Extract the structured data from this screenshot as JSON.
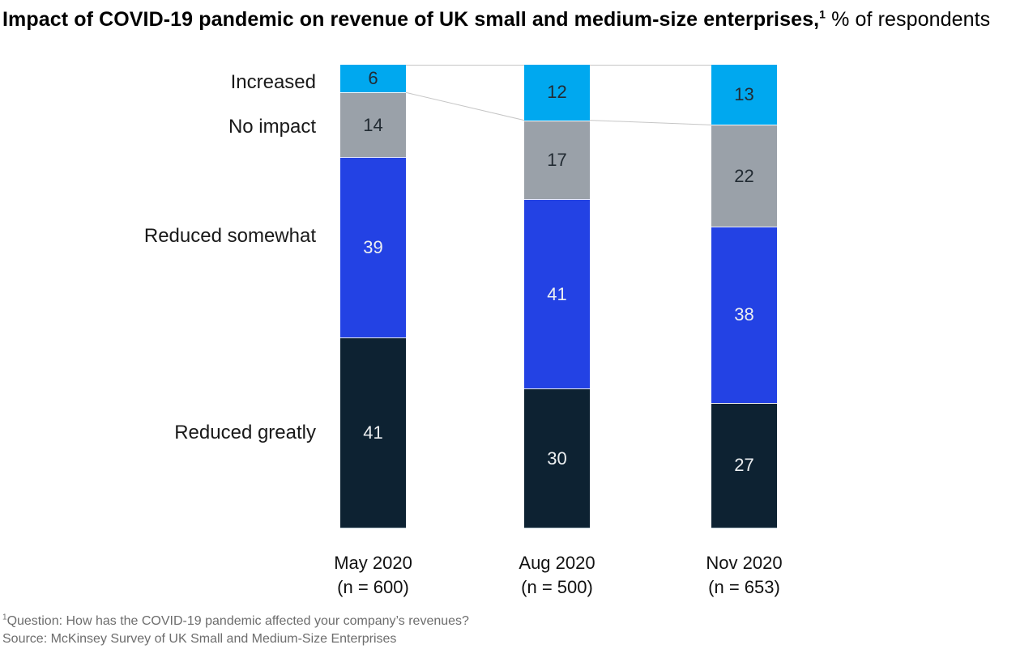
{
  "title": {
    "main": "Impact of COVID-19 pandemic on revenue of UK small and medium-size enterprises,",
    "footnote_marker": "1",
    "suffix": " % of respondents"
  },
  "chart_data": {
    "type": "bar",
    "stacked": true,
    "orientation": "vertical",
    "value_unit": "% of respondents",
    "total_per_bar": 100,
    "grid": false,
    "legend_position": "left-row-labels",
    "categories": [
      {
        "label": "May 2020",
        "n_label": "(n = 600)"
      },
      {
        "label": "Aug 2020",
        "n_label": "(n = 500)"
      },
      {
        "label": "Nov 2020",
        "n_label": "(n = 653)"
      }
    ],
    "series": [
      {
        "name": "Increased",
        "color": "#00a8ef",
        "text_color": "#222b33",
        "values": [
          6,
          12,
          13
        ]
      },
      {
        "name": "No impact",
        "color": "#9aa1a9",
        "text_color": "#222b33",
        "values": [
          14,
          17,
          22
        ]
      },
      {
        "name": "Reduced somewhat",
        "color": "#2342e4",
        "text_color": "#eceff1",
        "values": [
          39,
          41,
          38
        ]
      },
      {
        "name": "Reduced greatly",
        "color": "#0d2232",
        "text_color": "#eceff1",
        "values": [
          41,
          30,
          27
        ]
      }
    ],
    "connector_line_color": "#c6c6c6"
  },
  "footnotes": {
    "question": {
      "marker": "1",
      "text": "Question: How has the COVID-19 pandemic affected your company’s revenues?"
    },
    "source": "Source: McKinsey Survey of UK Small and Medium-Size Enterprises"
  }
}
